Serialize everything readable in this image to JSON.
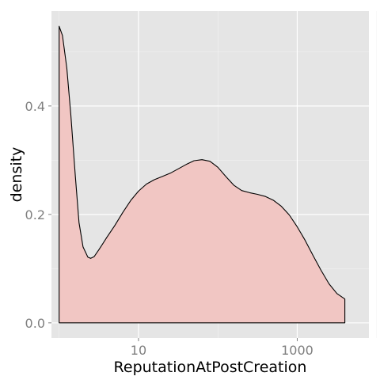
{
  "chart_data": {
    "type": "area",
    "chart_kind": "density",
    "xlabel": "ReputationAtPostCreation",
    "ylabel": "density",
    "x_scale": "log10",
    "xlim": [
      0.8,
      8000
    ],
    "ylim": [
      -0.028,
      0.575
    ],
    "x_ticks": [
      {
        "value": 10,
        "label": "10"
      },
      {
        "value": 1000,
        "label": "1000"
      }
    ],
    "y_ticks": [
      {
        "value": 0.0,
        "label": "0.0"
      },
      {
        "value": 0.2,
        "label": "0.2"
      },
      {
        "value": 0.4,
        "label": "0.4"
      }
    ],
    "x_minor_grid": [
      1,
      100,
      10000
    ],
    "y_minor_grid": [
      0.1,
      0.3,
      0.5
    ],
    "grid": true,
    "fill_color": "#f1c6c3",
    "line_color": "#000000",
    "panel_color": "#e5e5e5",
    "grid_color": "#ffffff",
    "points": [
      [
        1.0,
        0.547
      ],
      [
        1.1,
        0.53
      ],
      [
        1.25,
        0.47
      ],
      [
        1.4,
        0.385
      ],
      [
        1.6,
        0.27
      ],
      [
        1.78,
        0.185
      ],
      [
        2.0,
        0.14
      ],
      [
        2.3,
        0.121
      ],
      [
        2.5,
        0.119
      ],
      [
        2.75,
        0.122
      ],
      [
        3.2,
        0.136
      ],
      [
        4.0,
        0.158
      ],
      [
        5.0,
        0.179
      ],
      [
        6.3,
        0.203
      ],
      [
        8.0,
        0.226
      ],
      [
        10.0,
        0.243
      ],
      [
        12.6,
        0.256
      ],
      [
        15.8,
        0.264
      ],
      [
        20.0,
        0.27
      ],
      [
        25.1,
        0.276
      ],
      [
        31.6,
        0.284
      ],
      [
        39.8,
        0.292
      ],
      [
        50.1,
        0.299
      ],
      [
        63.1,
        0.301
      ],
      [
        79.4,
        0.298
      ],
      [
        100.0,
        0.287
      ],
      [
        125.9,
        0.27
      ],
      [
        158.5,
        0.254
      ],
      [
        199.5,
        0.244
      ],
      [
        251.2,
        0.24
      ],
      [
        316.2,
        0.237
      ],
      [
        398.1,
        0.233
      ],
      [
        501.2,
        0.226
      ],
      [
        631.0,
        0.215
      ],
      [
        794.3,
        0.199
      ],
      [
        1000.0,
        0.177
      ],
      [
        1258.9,
        0.152
      ],
      [
        1584.9,
        0.124
      ],
      [
        1995.3,
        0.097
      ],
      [
        2511.9,
        0.072
      ],
      [
        3162.3,
        0.054
      ],
      [
        3981.1,
        0.044
      ]
    ]
  }
}
